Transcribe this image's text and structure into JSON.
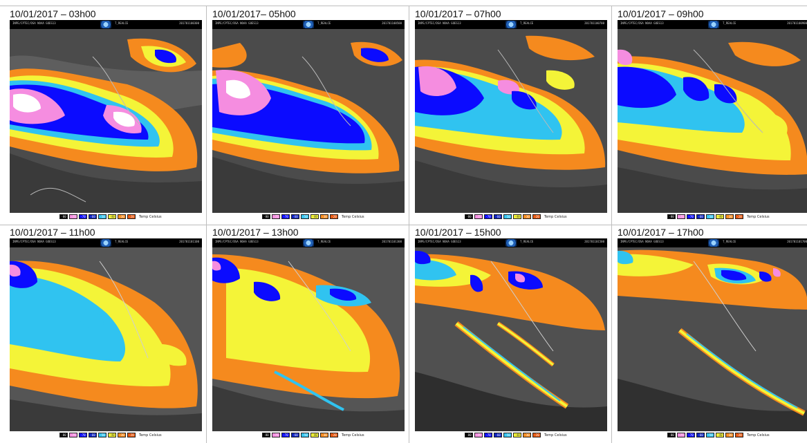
{
  "header_line_1": "INPE/CPTEC/DSA NOAA GOES13",
  "header_line_2": "T_REALCE",
  "legend_label": "Temp Celsius",
  "legend": [
    {
      "value": "-80",
      "color": "#000000"
    },
    {
      "value": "-75",
      "color": "#f58de0"
    },
    {
      "value": "-70",
      "color": "#0b0bff"
    },
    {
      "value": "-60",
      "color": "#0a1fbf"
    },
    {
      "value": "-50",
      "color": "#30c3f0"
    },
    {
      "value": "-40",
      "color": "#f4f438"
    },
    {
      "value": "-30",
      "color": "#f58a1e"
    },
    {
      "value": "-20",
      "color": "#e5560f"
    }
  ],
  "panels": [
    {
      "stamp": "10/01/2017 – 03h00",
      "id_code": "201701100300"
    },
    {
      "stamp": "10/01/2017– 05h00",
      "id_code": "201701100500"
    },
    {
      "stamp": "10/01/2017 – 07h00",
      "id_code": "201701100700"
    },
    {
      "stamp": "10/01/2017 – 09h00",
      "id_code": "201701100900"
    },
    {
      "stamp": "10/01/2017 – 11h00",
      "id_code": "201701101100"
    },
    {
      "stamp": "10/01/2017 – 13h00",
      "id_code": "201701101300"
    },
    {
      "stamp": "10/01/2017 – 15h00",
      "id_code": "201701101500"
    },
    {
      "stamp": "10/01/2017 – 17h00",
      "id_code": "201701101700"
    }
  ]
}
